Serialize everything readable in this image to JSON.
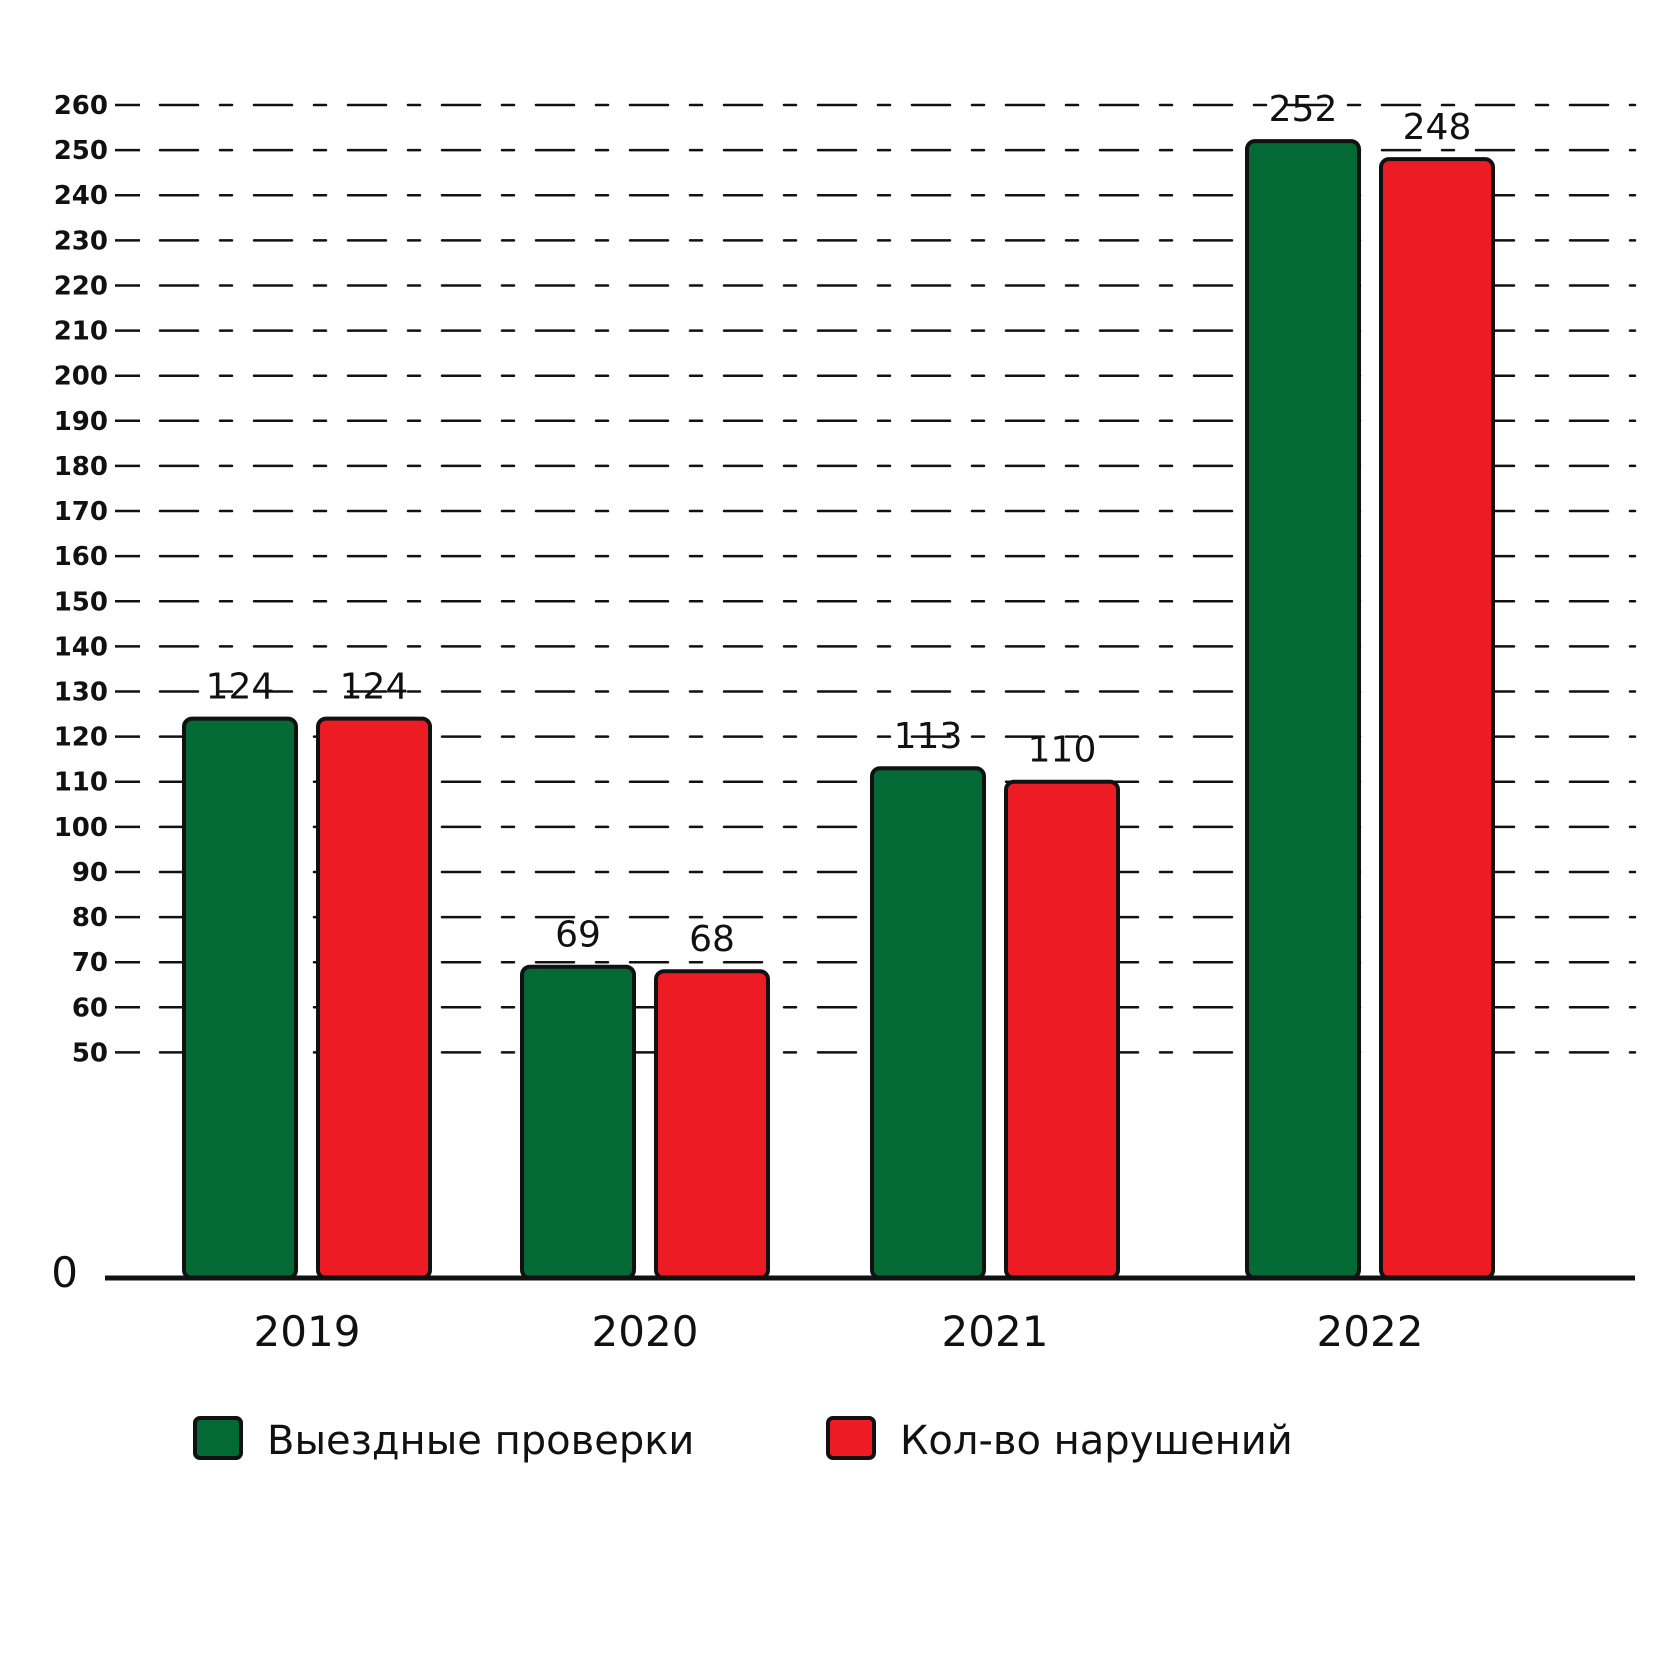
{
  "chart_data": {
    "type": "bar",
    "categories": [
      "2019",
      "2020",
      "2021",
      "2022"
    ],
    "series": [
      {
        "name": "Выездные проверки",
        "color": "#036a35",
        "values": [
          124,
          69,
          113,
          252
        ]
      },
      {
        "name": "Кол-во нарушений",
        "color": "#ed1c24",
        "values": [
          124,
          68,
          110,
          248
        ]
      }
    ],
    "y_ticks": [
      0,
      50,
      60,
      70,
      80,
      90,
      100,
      110,
      120,
      130,
      140,
      150,
      160,
      170,
      180,
      190,
      200,
      210,
      220,
      230,
      240,
      250,
      260
    ],
    "ylim": [
      0,
      260
    ],
    "grid": true,
    "legend_position": "bottom",
    "title": "",
    "xlabel": "",
    "ylabel": ""
  }
}
